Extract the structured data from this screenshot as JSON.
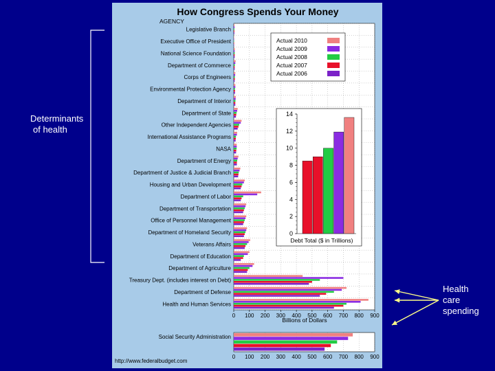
{
  "annotations": {
    "determinants_line1": "Determinants",
    "determinants_line2": "of health",
    "health_line1": "Health",
    "health_line2": "care",
    "health_line3": "spending"
  },
  "colors": {
    "slide_bg": "#00008b",
    "panel_bg": "#a8cbe8",
    "plot_bg": "#ffffff",
    "bracket": "#ffffff",
    "arrows": "#ffff88"
  },
  "chart_data": {
    "type": "bar",
    "title": "How Congress Spends Your Money",
    "category_header": "AGENCY",
    "xlabel": "Billions of Dollars",
    "xlim": [
      0,
      900
    ],
    "xticks": [
      0,
      100,
      200,
      300,
      400,
      500,
      600,
      700,
      800,
      900
    ],
    "source": "http://www.federalbudget.com",
    "grid": true,
    "legend_position": "top-right",
    "series": [
      {
        "name": "Actual 2010",
        "color": "#f08080"
      },
      {
        "name": "Actual 2009",
        "color": "#8a2be2"
      },
      {
        "name": "Actual 2008",
        "color": "#22cc44"
      },
      {
        "name": "Actual 2007",
        "color": "#e8102a"
      },
      {
        "name": "Actual 2006",
        "color": "#7b22c8"
      }
    ],
    "categories": [
      {
        "label": "Legislative Branch",
        "values": [
          5,
          5,
          4,
          4,
          4
        ]
      },
      {
        "label": "Executive Office of President",
        "values": [
          1,
          1,
          1,
          1,
          1
        ]
      },
      {
        "label": "National Science Foundation",
        "values": [
          7,
          6,
          6,
          6,
          6
        ]
      },
      {
        "label": "Department of Commerce",
        "values": [
          12,
          10,
          7,
          6,
          6
        ]
      },
      {
        "label": "Corps of Engineers",
        "values": [
          10,
          9,
          7,
          7,
          6
        ]
      },
      {
        "label": "Environmental Protection Agency",
        "values": [
          10,
          10,
          8,
          8,
          8
        ]
      },
      {
        "label": "Department of Interior",
        "values": [
          13,
          12,
          11,
          10,
          10
        ]
      },
      {
        "label": "Department of State",
        "values": [
          25,
          22,
          18,
          16,
          14
        ]
      },
      {
        "label": "Other Independent Agencies",
        "values": [
          50,
          45,
          35,
          30,
          25
        ]
      },
      {
        "label": "International Assistance Programs",
        "values": [
          22,
          20,
          14,
          13,
          12
        ]
      },
      {
        "label": "NASA",
        "values": [
          19,
          19,
          18,
          16,
          15
        ]
      },
      {
        "label": "Department of Energy",
        "values": [
          30,
          25,
          22,
          20,
          20
        ]
      },
      {
        "label": "Department of Justice & Judicial Branch",
        "values": [
          42,
          37,
          32,
          30,
          28
        ]
      },
      {
        "label": "Housing and Urban Development",
        "values": [
          70,
          65,
          55,
          50,
          45
        ]
      },
      {
        "label": "Department of Labor",
        "values": [
          175,
          150,
          60,
          50,
          45
        ]
      },
      {
        "label": "Department of Transportation",
        "values": [
          80,
          75,
          70,
          65,
          60
        ]
      },
      {
        "label": "Office of Personnel Management",
        "values": [
          80,
          75,
          70,
          65,
          60
        ]
      },
      {
        "label": "Department of Homeland Security",
        "values": [
          85,
          80,
          75,
          70,
          65
        ]
      },
      {
        "label": "Veterans Affairs",
        "values": [
          105,
          95,
          85,
          75,
          70
        ]
      },
      {
        "label": "Department of Education",
        "values": [
          100,
          90,
          65,
          60,
          45
        ]
      },
      {
        "label": "Department of Agriculture",
        "values": [
          130,
          120,
          100,
          90,
          85
        ]
      },
      {
        "label": "Treasury Dept. (includes interest on Debt)",
        "values": [
          440,
          700,
          550,
          500,
          480
        ]
      },
      {
        "label": "Department of Defense",
        "values": [
          720,
          690,
          640,
          590,
          550
        ]
      },
      {
        "label": "Health and Human Services",
        "values": [
          860,
          810,
          720,
          700,
          640
        ]
      }
    ],
    "ssa_panel": {
      "label": "Social Security Administration",
      "values": [
        760,
        730,
        660,
        620,
        580
      ],
      "xlim": [
        0,
        900
      ],
      "xticks": [
        0,
        100,
        200,
        300,
        400,
        500,
        600,
        700,
        800,
        900
      ]
    },
    "debt_inset": {
      "type": "bar",
      "xlabel": "Debt Total ($ in Trillions)",
      "ylim": [
        0,
        14
      ],
      "yticks": [
        0,
        2,
        4,
        6,
        8,
        10,
        12,
        14
      ],
      "bars": [
        {
          "series": "Actual 2006",
          "value": 8.5,
          "color": "#e8102a"
        },
        {
          "series": "Actual 2007",
          "value": 9.0,
          "color": "#e8102a"
        },
        {
          "series": "Actual 2008",
          "value": 10.0,
          "color": "#22cc44"
        },
        {
          "series": "Actual 2009",
          "value": 11.9,
          "color": "#8a2be2"
        },
        {
          "series": "Actual 2010",
          "value": 13.6,
          "color": "#f08080"
        }
      ]
    }
  }
}
